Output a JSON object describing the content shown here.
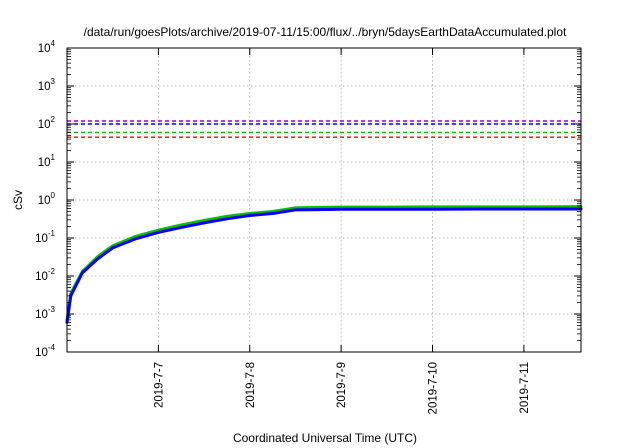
{
  "chart_data": {
    "type": "line",
    "title": "/data/run/goesPlots/archive/2019-07-11/15:00/flux/../bryn/5daysEarthDataAccumulated.plot",
    "xlabel": "Coordinated Universal Time (UTC)",
    "ylabel": "cSv",
    "yscale": "log",
    "ylim": [
      0.0001,
      10000
    ],
    "xlim": [
      "2019-07-06 00:00",
      "2019-07-11 15:00"
    ],
    "grid": true,
    "y_ticks": [
      {
        "base": "10",
        "exp": "-4"
      },
      {
        "base": "10",
        "exp": "-3"
      },
      {
        "base": "10",
        "exp": "-2"
      },
      {
        "base": "10",
        "exp": "-1"
      },
      {
        "base": "10",
        "exp": "0"
      },
      {
        "base": "10",
        "exp": "1"
      },
      {
        "base": "10",
        "exp": "2"
      },
      {
        "base": "10",
        "exp": "3"
      },
      {
        "base": "10",
        "exp": "4"
      }
    ],
    "x_ticks": [
      "2019-7-7",
      "2019-7-8",
      "2019-7-9",
      "2019-7-10",
      "2019-7-11"
    ],
    "thresholds": [
      {
        "value": 120,
        "color": "#9400d3"
      },
      {
        "value": 100,
        "color": "#0000ff"
      },
      {
        "value": 60,
        "color": "#00c000"
      },
      {
        "value": 45,
        "color": "#ff0000"
      }
    ],
    "series": [
      {
        "color": "#00c000",
        "points": [
          [
            "2019-07-06 00:00",
            0.0007
          ],
          [
            "2019-07-06 01:00",
            0.0035
          ],
          [
            "2019-07-06 04:00",
            0.013
          ],
          [
            "2019-07-06 08:00",
            0.032
          ],
          [
            "2019-07-06 12:00",
            0.062
          ],
          [
            "2019-07-06 18:00",
            0.11
          ],
          [
            "2019-07-07 00:00",
            0.16
          ],
          [
            "2019-07-07 06:00",
            0.22
          ],
          [
            "2019-07-07 12:00",
            0.29
          ],
          [
            "2019-07-07 18:00",
            0.37
          ],
          [
            "2019-07-08 00:00",
            0.44
          ],
          [
            "2019-07-08 06:00",
            0.5
          ],
          [
            "2019-07-08 12:00",
            0.62
          ],
          [
            "2019-07-08 18:00",
            0.64
          ],
          [
            "2019-07-09 00:00",
            0.65
          ],
          [
            "2019-07-09 12:00",
            0.65
          ],
          [
            "2019-07-10 00:00",
            0.66
          ],
          [
            "2019-07-10 12:00",
            0.66
          ],
          [
            "2019-07-11 00:00",
            0.66
          ],
          [
            "2019-07-11 15:00",
            0.67
          ]
        ]
      },
      {
        "color": "#0000ff",
        "points": [
          [
            "2019-07-06 00:00",
            0.0006
          ],
          [
            "2019-07-06 01:00",
            0.003
          ],
          [
            "2019-07-06 04:00",
            0.012
          ],
          [
            "2019-07-06 08:00",
            0.028
          ],
          [
            "2019-07-06 12:00",
            0.055
          ],
          [
            "2019-07-06 18:00",
            0.095
          ],
          [
            "2019-07-07 00:00",
            0.14
          ],
          [
            "2019-07-07 06:00",
            0.19
          ],
          [
            "2019-07-07 12:00",
            0.25
          ],
          [
            "2019-07-07 18:00",
            0.32
          ],
          [
            "2019-07-08 00:00",
            0.39
          ],
          [
            "2019-07-08 06:00",
            0.44
          ],
          [
            "2019-07-08 12:00",
            0.55
          ],
          [
            "2019-07-08 18:00",
            0.56
          ],
          [
            "2019-07-09 00:00",
            0.57
          ],
          [
            "2019-07-09 12:00",
            0.57
          ],
          [
            "2019-07-10 00:00",
            0.57
          ],
          [
            "2019-07-10 12:00",
            0.58
          ],
          [
            "2019-07-11 00:00",
            0.58
          ],
          [
            "2019-07-11 15:00",
            0.58
          ]
        ]
      }
    ]
  }
}
